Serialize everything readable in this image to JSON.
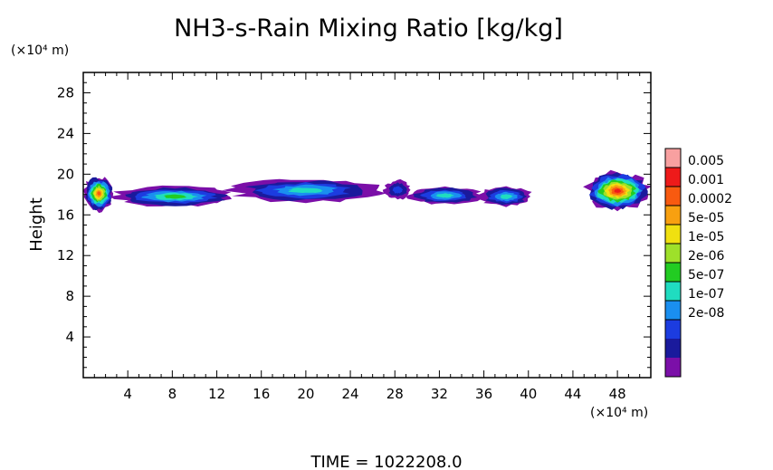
{
  "chart_data": {
    "type": "heatmap",
    "title": "NH3-s-Rain Mixing Ratio [kg/kg]",
    "xlabel": "",
    "ylabel": "Height",
    "x_unit": "(×10⁴ m)",
    "y_unit": "(×10⁴ m)",
    "xlim": [
      0,
      51
    ],
    "ylim": [
      0,
      30
    ],
    "x_ticks": [
      4,
      8,
      12,
      16,
      20,
      24,
      28,
      32,
      36,
      40,
      44,
      48
    ],
    "y_ticks": [
      4,
      8,
      12,
      16,
      20,
      24,
      28
    ],
    "footer": "TIME  =  1022208.0",
    "colorbar": {
      "labels": [
        "0.005",
        "0.001",
        "0.0002",
        "5e-05",
        "1e-05",
        "2e-06",
        "5e-07",
        "1e-07",
        "2e-08"
      ],
      "colors": [
        "#7b0fa8",
        "#1a1a9c",
        "#1c3ce0",
        "#1a8ff0",
        "#20dcc0",
        "#22cc22",
        "#9ee02a",
        "#f0e010",
        "#f8a010",
        "#f85a10",
        "#ee1a1a",
        "#f8a0a0"
      ]
    },
    "cloud_bands": [
      {
        "name": "left-edge",
        "x": [
          0.0,
          2.8
        ],
        "y": [
          16.4,
          19.8
        ],
        "peak": 9
      },
      {
        "name": "main-band-a",
        "x": [
          2.5,
          14.0
        ],
        "y": [
          16.8,
          18.8
        ],
        "peak": 5
      },
      {
        "name": "main-band-b",
        "x": [
          13.0,
          27.0
        ],
        "y": [
          17.2,
          19.6
        ],
        "peak": 4
      },
      {
        "name": "main-band-c",
        "x": [
          27.0,
          29.5
        ],
        "y": [
          17.5,
          19.4
        ],
        "peak": 2
      },
      {
        "name": "mid-blob",
        "x": [
          29.0,
          36.0
        ],
        "y": [
          17.0,
          18.8
        ],
        "peak": 4
      },
      {
        "name": "right-small",
        "x": [
          35.5,
          40.5
        ],
        "y": [
          16.8,
          18.8
        ],
        "peak": 4
      },
      {
        "name": "right-edge",
        "x": [
          45.0,
          51.0
        ],
        "y": [
          16.5,
          20.2
        ],
        "peak": 10
      }
    ]
  }
}
